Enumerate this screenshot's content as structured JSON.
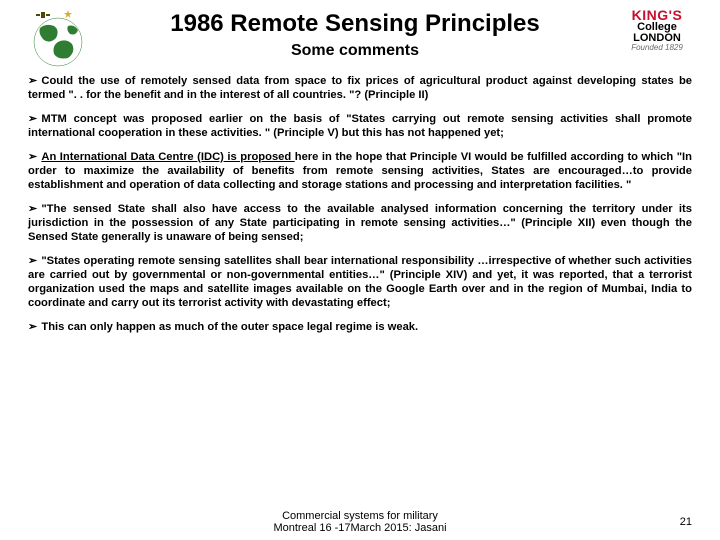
{
  "title": "1986 Remote Sensing Principles",
  "subtitle": "Some comments",
  "logo": {
    "line1": "KING'S",
    "line2": "College",
    "line3": "LONDON",
    "line4": "Founded 1829",
    "kings_color": "#c8102e",
    "text_color": "#000000",
    "founded_color": "#6a6a6a"
  },
  "globe": {
    "land_color": "#2e7d32",
    "ocean_color": "#ffffff",
    "satellite_color": "#4a4a00",
    "star_color": "#d4af37"
  },
  "bullets": [
    {
      "pre": "Could the use of remotely sensed data from space to fix prices of agricultural product against developing states be termed \". . for the benefit and in the interest of all countries. \"? (Principle II)"
    },
    {
      "pre": "MTM concept was proposed earlier on the basis of  \"States carrying out remote sensing activities shall promote international cooperation in these activities. \" (Principle V) but this has not happened yet;"
    },
    {
      "pre": "",
      "underlined": "An International Data Centre (IDC) is proposed ",
      "post": "here in the hope that Principle VI would be fulfilled according to which \"In order to maximize the availability of benefits from remote sensing activities, States are encouraged…to provide establishment and operation of data collecting and storage stations and processing and interpretation facilities. \""
    },
    {
      "pre": "\"The sensed State shall also have access to the available analysed information concerning the territory under its jurisdiction in the possession of any State participating in remote sensing activities…\" (Principle XII)  even though the Sensed State generally is unaware of being sensed;"
    },
    {
      "pre": "\"States operating remote sensing satellites shall bear international responsibility …irrespective of whether such activities are carried out by governmental or non-governmental entities…\" (Principle XIV) and yet, it was reported, that a terrorist organization used the maps and satellite images available on the Google Earth over and in the region of Mumbai, India to coordinate and carry out its terrorist activity with devastating effect;"
    },
    {
      "pre": "This can only happen as much of the outer space legal regime is weak."
    }
  ],
  "footer_line1": "Commercial systems for military",
  "footer_line2": "Montreal 16 -17March 2015: Jasani",
  "page_number": "21",
  "colors": {
    "background": "#ffffff",
    "text": "#000000"
  },
  "typography": {
    "title_fontsize": 24,
    "subtitle_fontsize": 16,
    "body_fontsize": 11.2,
    "footer_fontsize": 11,
    "font_family": "Arial"
  }
}
